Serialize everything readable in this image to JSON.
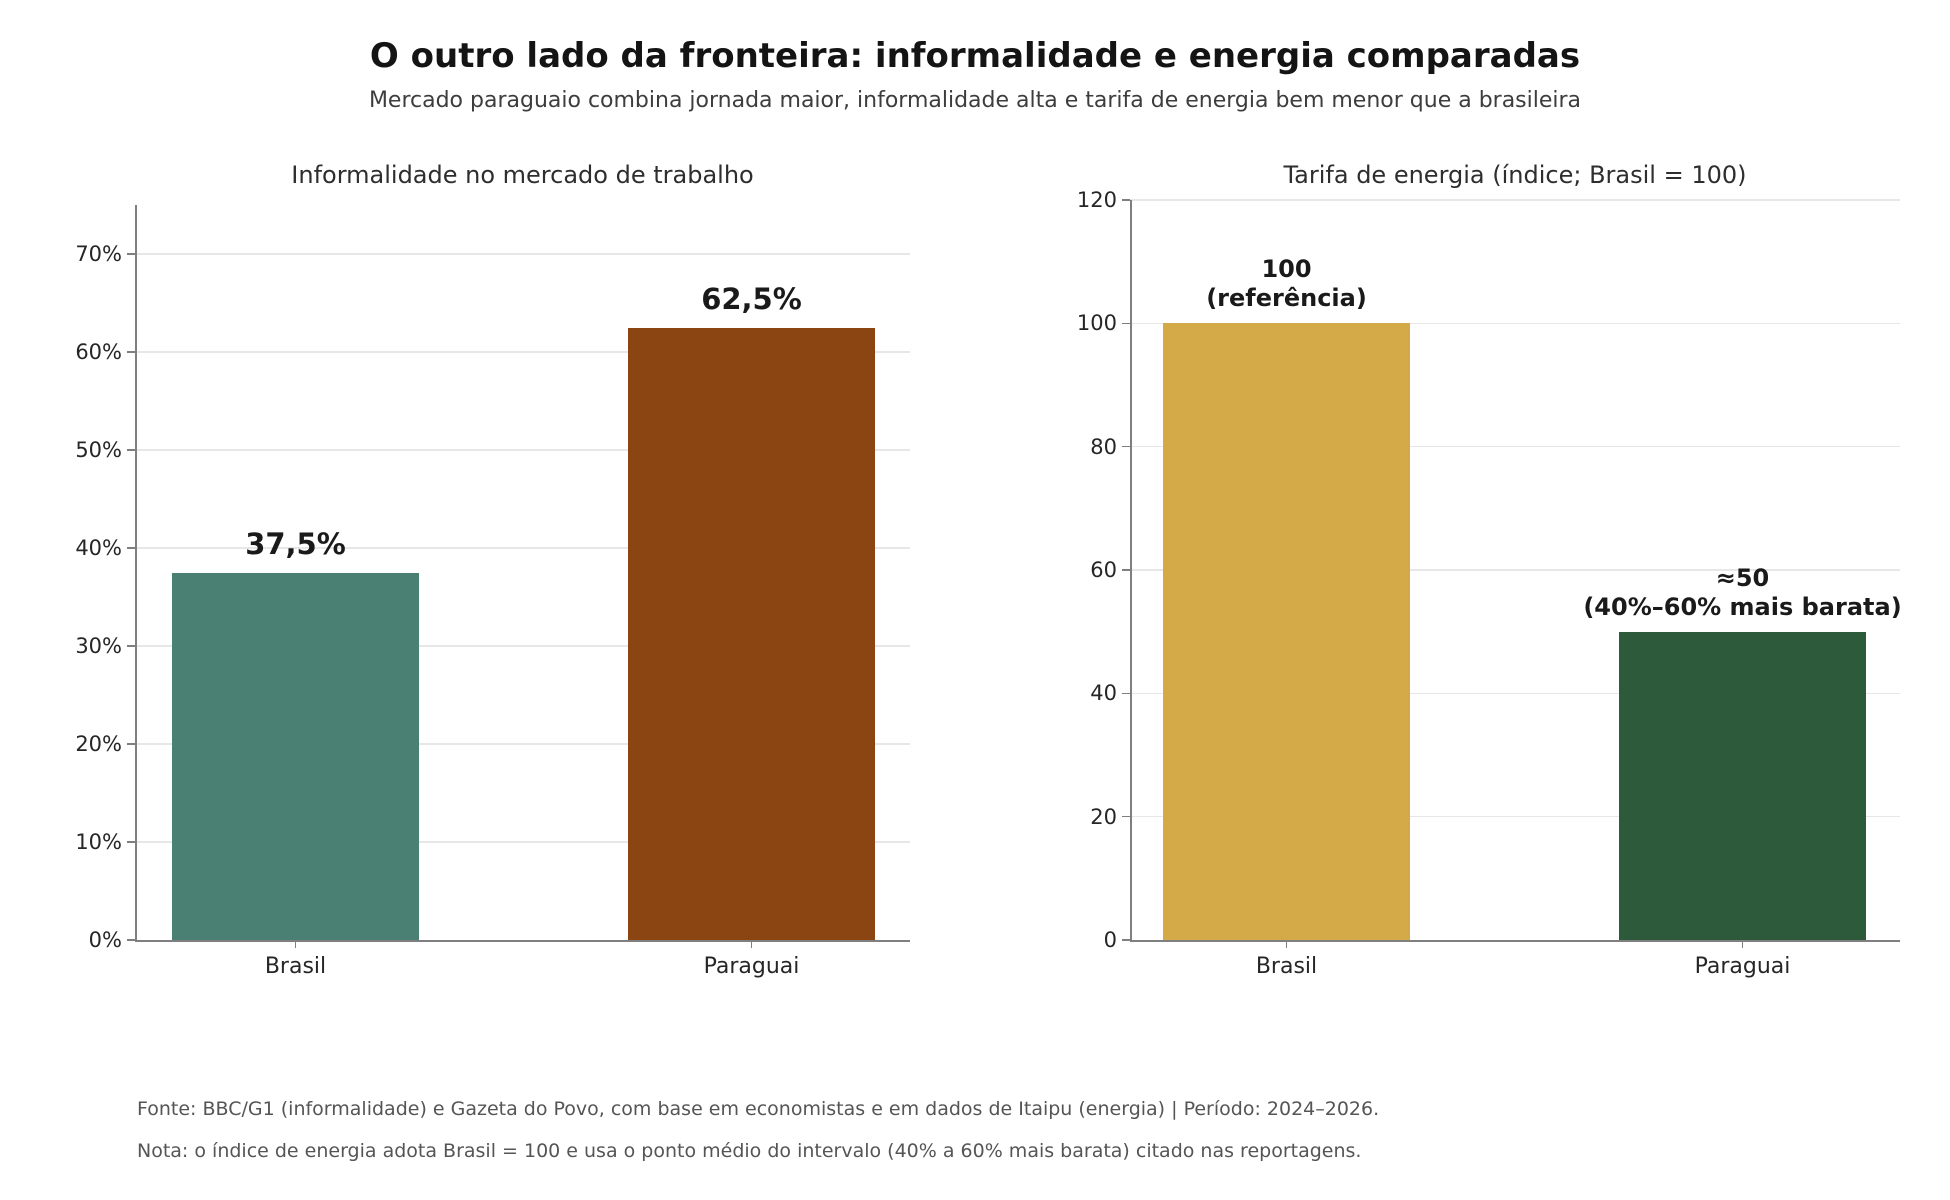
{
  "header": {
    "title": "O outro lado da fronteira: informalidade e energia comparadas",
    "subtitle": "Mercado paraguaio combina jornada maior, informalidade alta e tarifa de energia bem menor que a brasileira"
  },
  "footer": {
    "source": "Fonte: BBC/G1 (informalidade) e Gazeta do Povo, com base em economistas e em dados de Itaipu (energia) | Período: 2024–2026.",
    "note": "Nota: o índice de energia adota Brasil = 100 e usa o ponto médio do intervalo (40% a 60% mais barata) citado nas reportagens."
  },
  "chart_data": [
    {
      "type": "bar",
      "title": "Informalidade no mercado de trabalho",
      "categories": [
        "Brasil",
        "Paraguai"
      ],
      "values": [
        37.5,
        62.5
      ],
      "bar_labels": [
        [
          "37,5%"
        ],
        [
          "62,5%"
        ]
      ],
      "bar_colors": [
        "#4A8073",
        "#8B4513"
      ],
      "ylim": [
        0,
        75
      ],
      "yticks": [
        0,
        10,
        20,
        30,
        40,
        50,
        60,
        70
      ],
      "ytick_labels": [
        "0%",
        "10%",
        "20%",
        "30%",
        "40%",
        "50%",
        "60%",
        "70%"
      ],
      "grid": true,
      "legend": "none"
    },
    {
      "type": "bar",
      "title": "Tarifa de energia (índice; Brasil = 100)",
      "categories": [
        "Brasil",
        "Paraguai"
      ],
      "values": [
        100,
        50
      ],
      "bar_labels": [
        [
          "100",
          "(referência)"
        ],
        [
          "≈50",
          "(40%–60% mais barata)"
        ]
      ],
      "bar_colors": [
        "#D4A948",
        "#2E5A3C"
      ],
      "ylim": [
        0,
        120
      ],
      "yticks": [
        0,
        20,
        40,
        60,
        80,
        100,
        120
      ],
      "ytick_labels": [
        "0",
        "20",
        "40",
        "60",
        "80",
        "100",
        "120"
      ],
      "grid": true,
      "legend": "none"
    }
  ]
}
